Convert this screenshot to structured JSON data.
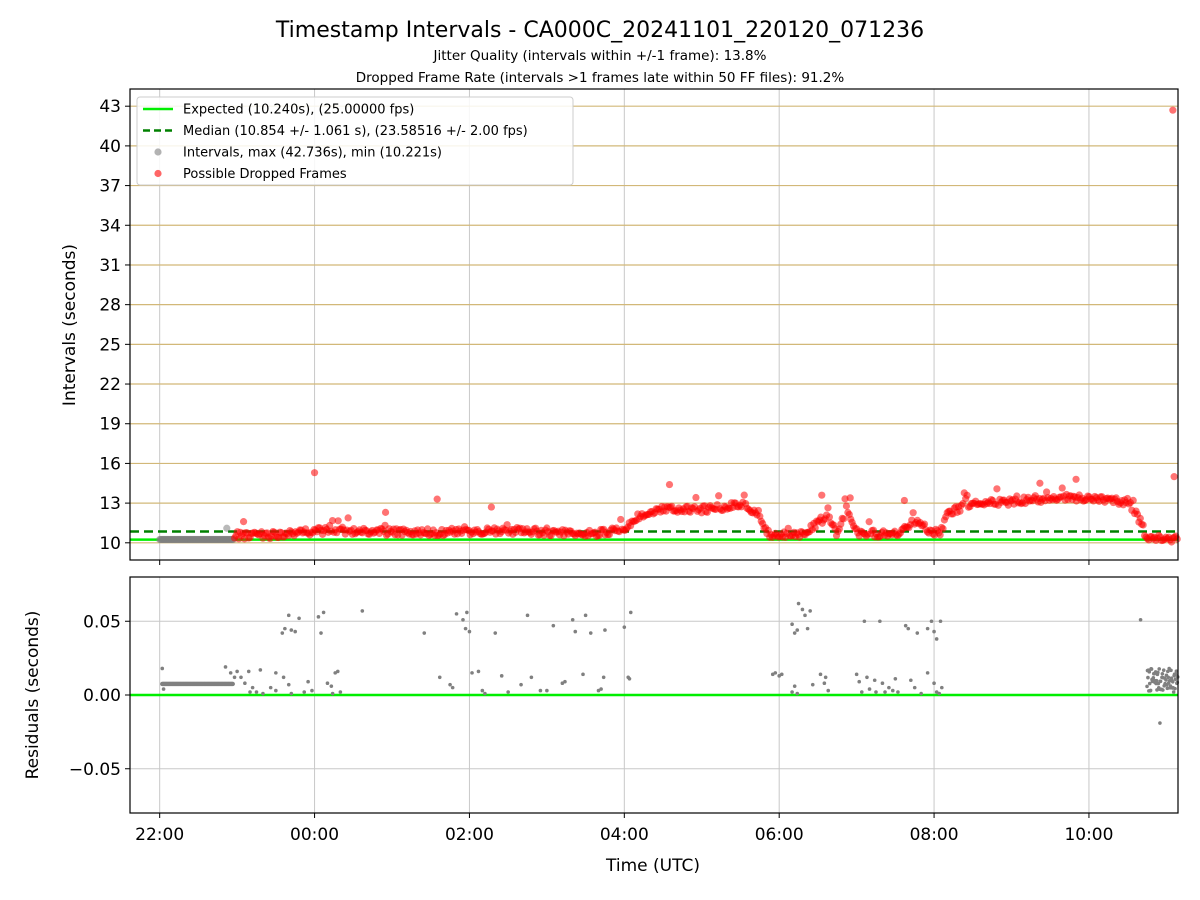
{
  "title": "Timestamp Intervals - CA000C_20241101_220120_071236",
  "subtitle1": "Jitter Quality (intervals within +/-1 frame): 13.8%",
  "subtitle2": "Dropped Frame Rate (intervals >1 frames late within 50 FF files): 91.2%",
  "colors": {
    "expected": "#00ee00",
    "median": "#008000",
    "intervals": "#808080",
    "dropped": "#ff0000",
    "hgrid_top": "#d2b878",
    "grid": "#c8c8c8"
  },
  "chart_data": [
    {
      "type": "scatter",
      "panel": "top",
      "ylabel": "Intervals (seconds)",
      "ylim": [
        8.7,
        44.3
      ],
      "xlim": [
        "21:37",
        "11:09"
      ],
      "yticks": [
        "10",
        "13",
        "16",
        "19",
        "22",
        "25",
        "28",
        "31",
        "34",
        "37",
        "40",
        "43"
      ],
      "grid": true,
      "legend_position": "top-left",
      "legend": [
        {
          "key": "expected",
          "label": "Expected (10.240s), (25.00000 fps)"
        },
        {
          "key": "median",
          "label": "Median (10.854 +/- 1.061 s), (23.58516 +/- 2.00 fps)"
        },
        {
          "key": "intervals",
          "label": "Intervals, max (42.736s), min (10.221s)"
        },
        {
          "key": "dropped",
          "label": "Possible Dropped Frames"
        }
      ],
      "expected_line": 10.24,
      "median_line": 10.854,
      "series": [
        {
          "name": "Intervals, max (42.736s), min (10.221s)",
          "segments": [
            {
              "from": "22:00",
              "to": "22:57",
              "value": 10.25
            }
          ],
          "points": [
            {
              "x": "22:52",
              "y": 11.1
            }
          ]
        },
        {
          "name": "Possible Dropped Frames",
          "profile": [
            [
              "22:58",
              10.5
            ],
            [
              "23:30",
              10.6
            ],
            [
              "00:00",
              10.9
            ],
            [
              "00:30",
              10.9
            ],
            [
              "01:00",
              10.8
            ],
            [
              "01:30",
              10.8
            ],
            [
              "02:00",
              10.8
            ],
            [
              "02:30",
              10.9
            ],
            [
              "03:00",
              10.8
            ],
            [
              "03:30",
              10.7
            ],
            [
              "04:00",
              10.9
            ],
            [
              "04:10",
              11.9
            ],
            [
              "04:30",
              12.5
            ],
            [
              "05:00",
              12.5
            ],
            [
              "05:30",
              12.9
            ],
            [
              "05:45",
              12.2
            ],
            [
              "05:50",
              10.7
            ],
            [
              "06:20",
              10.6
            ],
            [
              "06:30",
              11.6
            ],
            [
              "06:38",
              11.9
            ],
            [
              "06:45",
              10.7
            ],
            [
              "06:52",
              12.6
            ],
            [
              "07:00",
              10.8
            ],
            [
              "07:30",
              10.6
            ],
            [
              "07:45",
              11.6
            ],
            [
              "08:00",
              10.7
            ],
            [
              "08:05",
              10.8
            ],
            [
              "08:10",
              12.2
            ],
            [
              "08:30",
              13.0
            ],
            [
              "09:00",
              13.1
            ],
            [
              "09:30",
              13.4
            ],
            [
              "10:00",
              13.4
            ],
            [
              "10:30",
              13.1
            ],
            [
              "10:40",
              11.6
            ],
            [
              "10:45",
              10.3
            ],
            [
              "11:09",
              10.3
            ]
          ],
          "outliers": [
            {
              "x": "11:05",
              "y": 42.7
            },
            {
              "x": "00:00",
              "y": 15.3
            },
            {
              "x": "11:06",
              "y": 15.0
            },
            {
              "x": "04:35",
              "y": 14.4
            },
            {
              "x": "09:50",
              "y": 14.8
            },
            {
              "x": "09:22",
              "y": 14.5
            },
            {
              "x": "01:35",
              "y": 13.3
            },
            {
              "x": "06:33",
              "y": 13.6
            },
            {
              "x": "06:55",
              "y": 13.4
            },
            {
              "x": "07:37",
              "y": 13.2
            },
            {
              "x": "02:17",
              "y": 12.7
            },
            {
              "x": "00:55",
              "y": 12.3
            },
            {
              "x": "23:05",
              "y": 11.6
            }
          ]
        }
      ]
    },
    {
      "type": "scatter",
      "panel": "bottom",
      "xlabel": "Time (UTC)",
      "ylabel": "Residuals (seconds)",
      "ylim": [
        -0.08,
        0.08
      ],
      "yticks": [
        {
          "v": 0.05,
          "label": "0.05"
        },
        {
          "v": 0.0,
          "label": "0.00"
        },
        {
          "v": -0.05,
          "label": "−0.05"
        }
      ],
      "xticks": [
        {
          "t": "22:00",
          "label": "22:00"
        },
        {
          "t": "00:00",
          "label": "00:00"
        },
        {
          "t": "02:00",
          "label": "02:00"
        },
        {
          "t": "04:00",
          "label": "04:00"
        },
        {
          "t": "06:00",
          "label": "06:00"
        },
        {
          "t": "08:00",
          "label": "08:00"
        },
        {
          "t": "10:00",
          "label": "10:00"
        }
      ],
      "grid": true,
      "zero_line": 0.0,
      "series": [
        {
          "name": "residuals",
          "band": {
            "from": "22:02",
            "to": "22:57",
            "value": 0.0075
          },
          "cluster": {
            "from": "10:45",
            "to": "11:09",
            "low": 0.002,
            "high": 0.018
          },
          "points": [
            [
              "22:02",
              0.018
            ],
            [
              "22:03",
              0.004
            ],
            [
              "22:51",
              0.019
            ],
            [
              "22:55",
              0.015
            ],
            [
              "22:58",
              0.012
            ],
            [
              "23:00",
              0.016
            ],
            [
              "23:03",
              0.012
            ],
            [
              "23:06",
              0.008
            ],
            [
              "23:09",
              0.016
            ],
            [
              "23:12",
              0.005
            ],
            [
              "23:15",
              0.002
            ],
            [
              "23:18",
              0.017
            ],
            [
              "23:10",
              0.002
            ],
            [
              "23:20",
              0.001
            ],
            [
              "23:26",
              0.005
            ],
            [
              "23:30",
              0.003
            ],
            [
              "23:35",
              0.042
            ],
            [
              "23:37",
              0.045
            ],
            [
              "23:40",
              0.054
            ],
            [
              "23:42",
              0.044
            ],
            [
              "23:45",
              0.043
            ],
            [
              "23:48",
              0.052
            ],
            [
              "23:52",
              0.002
            ],
            [
              "23:55",
              0.009
            ],
            [
              "23:58",
              0.003
            ],
            [
              "23:30",
              0.015
            ],
            [
              "23:36",
              0.012
            ],
            [
              "23:40",
              0.007
            ],
            [
              "23:42",
              0.001
            ],
            [
              "00:03",
              0.053
            ],
            [
              "00:05",
              0.042
            ],
            [
              "00:07",
              0.056
            ],
            [
              "00:10",
              0.008
            ],
            [
              "00:13",
              0.006
            ],
            [
              "00:16",
              0.015
            ],
            [
              "00:18",
              0.016
            ],
            [
              "00:20",
              0.002
            ],
            [
              "00:14",
              0.001
            ],
            [
              "00:37",
              0.057
            ],
            [
              "01:25",
              0.042
            ],
            [
              "01:37",
              0.012
            ],
            [
              "01:45",
              0.007
            ],
            [
              "01:47",
              0.005
            ],
            [
              "01:50",
              0.055
            ],
            [
              "01:55",
              0.051
            ],
            [
              "01:57",
              0.045
            ],
            [
              "01:58",
              0.056
            ],
            [
              "02:00",
              0.043
            ],
            [
              "02:02",
              0.015
            ],
            [
              "02:07",
              0.016
            ],
            [
              "02:10",
              0.003
            ],
            [
              "02:12",
              0.001
            ],
            [
              "02:20",
              0.042
            ],
            [
              "02:25",
              0.013
            ],
            [
              "02:30",
              0.002
            ],
            [
              "02:40",
              0.007
            ],
            [
              "02:45",
              0.054
            ],
            [
              "02:48",
              0.012
            ],
            [
              "02:55",
              0.003
            ],
            [
              "03:00",
              0.003
            ],
            [
              "03:05",
              0.047
            ],
            [
              "03:12",
              0.008
            ],
            [
              "03:14",
              0.009
            ],
            [
              "03:20",
              0.051
            ],
            [
              "03:22",
              0.043
            ],
            [
              "03:28",
              0.014
            ],
            [
              "03:30",
              0.054
            ],
            [
              "03:34",
              0.042
            ],
            [
              "03:40",
              0.003
            ],
            [
              "03:42",
              0.004
            ],
            [
              "03:44",
              0.012
            ],
            [
              "03:45",
              0.044
            ],
            [
              "04:00",
              0.046
            ],
            [
              "04:03",
              0.012
            ],
            [
              "04:04",
              0.011
            ],
            [
              "04:05",
              0.056
            ],
            [
              "05:55",
              0.014
            ],
            [
              "05:57",
              0.015
            ],
            [
              "06:00",
              0.013
            ],
            [
              "06:02",
              0.014
            ],
            [
              "06:10",
              0.048
            ],
            [
              "06:12",
              0.042
            ],
            [
              "06:14",
              0.044
            ],
            [
              "06:15",
              0.062
            ],
            [
              "06:18",
              0.058
            ],
            [
              "06:20",
              0.054
            ],
            [
              "06:22",
              0.045
            ],
            [
              "06:24",
              0.057
            ],
            [
              "06:26",
              0.007
            ],
            [
              "06:10",
              0.002
            ],
            [
              "06:12",
              0.006
            ],
            [
              "06:14",
              0.001
            ],
            [
              "06:35",
              0.008
            ],
            [
              "06:38",
              0.003
            ],
            [
              "06:32",
              0.014
            ],
            [
              "06:36",
              0.012
            ],
            [
              "07:00",
              0.014
            ],
            [
              "07:02",
              0.009
            ],
            [
              "07:04",
              0.002
            ],
            [
              "07:06",
              0.05
            ],
            [
              "07:08",
              0.012
            ],
            [
              "07:10",
              0.004
            ],
            [
              "07:14",
              0.01
            ],
            [
              "07:15",
              0.002
            ],
            [
              "07:18",
              0.05
            ],
            [
              "07:20",
              0.008
            ],
            [
              "07:22",
              0.002
            ],
            [
              "07:25",
              0.005
            ],
            [
              "07:28",
              0.003
            ],
            [
              "07:30",
              0.011
            ],
            [
              "07:32",
              0.002
            ],
            [
              "07:38",
              0.047
            ],
            [
              "07:40",
              0.045
            ],
            [
              "07:42",
              0.01
            ],
            [
              "07:45",
              0.005
            ],
            [
              "07:47",
              0.042
            ],
            [
              "07:50",
              0.001
            ],
            [
              "07:55",
              0.045
            ],
            [
              "07:58",
              0.05
            ],
            [
              "08:00",
              0.043
            ],
            [
              "08:02",
              0.038
            ],
            [
              "08:05",
              0.05
            ],
            [
              "07:55",
              0.015
            ],
            [
              "08:00",
              0.008
            ],
            [
              "08:02",
              0.002
            ],
            [
              "08:04",
              0.001
            ],
            [
              "08:06",
              0.005
            ],
            [
              "10:40",
              0.051
            ],
            [
              "10:55",
              -0.019
            ]
          ]
        }
      ]
    }
  ]
}
